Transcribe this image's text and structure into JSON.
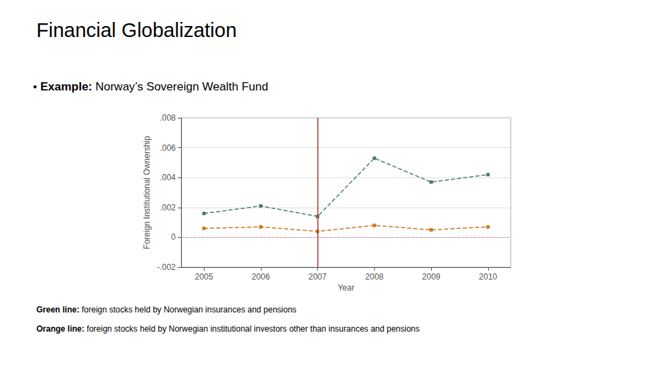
{
  "chart_data": {
    "type": "line",
    "title": "Financial Globalization",
    "annotations": [
      {
        "bullet": "•",
        "bold": "Example:",
        "text": " Norway’s Sovereign Wealth Fund"
      },
      {
        "bold": "Green line:",
        "text": " foreign stocks held by Norwegian insurances and pensions"
      },
      {
        "bold": "Orange line:",
        "text": " foreign stocks held by Norwegian institutional investors other than insurances and pensions"
      }
    ],
    "xlabel": "Year",
    "ylabel": "Foreign Institutional Ownership",
    "x": [
      2005,
      2006,
      2007,
      2008,
      2009,
      2010
    ],
    "series": [
      {
        "color": "#4a7c6a",
        "values": [
          0.0016,
          0.0021,
          0.0014,
          0.0053,
          0.0037,
          0.0042
        ],
        "line_style": "dashed",
        "marker": "square"
      },
      {
        "color": "#c87820",
        "values": [
          0.0006,
          0.0007,
          0.0004,
          0.0008,
          0.0005,
          0.0007
        ],
        "line_style": "dashed",
        "marker": "square"
      }
    ],
    "xlim": [
      2004.6,
      2010.4
    ],
    "xticks": [
      2005,
      2006,
      2007,
      2008,
      2009,
      2010
    ],
    "ylim": [
      -0.002,
      0.008
    ],
    "yticks": [
      {
        "value": -0.002,
        "label": "-.002"
      },
      0,
      {
        "value": 0.002,
        "label": ".002"
      },
      {
        "value": 0.004,
        "label": ".004"
      },
      {
        "value": 0.006,
        "label": ".006"
      },
      {
        "value": 0.008,
        "label": ".008"
      }
    ],
    "hline": {
      "value": 0,
      "color": "#d09090",
      "line_style": "dashed"
    },
    "vline": {
      "value": 2007,
      "color": "#b03030",
      "line_style": "solid"
    },
    "grid": true
  }
}
